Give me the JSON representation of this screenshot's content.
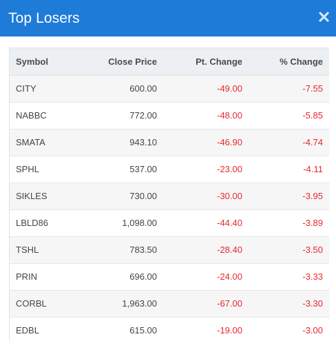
{
  "header": {
    "title": "Top Losers"
  },
  "colors": {
    "header_bg": "#1e7bd8",
    "negative": "#e8262b"
  },
  "icons": {
    "close": "close-icon"
  },
  "table": {
    "columns": [
      "Symbol",
      "Close Price",
      "Pt. Change",
      "% Change"
    ],
    "rows": [
      {
        "symbol": "CITY",
        "close": "600.00",
        "pt": "-49.00",
        "pct": "-7.55"
      },
      {
        "symbol": "NABBC",
        "close": "772.00",
        "pt": "-48.00",
        "pct": "-5.85"
      },
      {
        "symbol": "SMATA",
        "close": "943.10",
        "pt": "-46.90",
        "pct": "-4.74"
      },
      {
        "symbol": "SPHL",
        "close": "537.00",
        "pt": "-23.00",
        "pct": "-4.11"
      },
      {
        "symbol": "SIKLES",
        "close": "730.00",
        "pt": "-30.00",
        "pct": "-3.95"
      },
      {
        "symbol": "LBLD86",
        "close": "1,098.00",
        "pt": "-44.40",
        "pct": "-3.89"
      },
      {
        "symbol": "TSHL",
        "close": "783.50",
        "pt": "-28.40",
        "pct": "-3.50"
      },
      {
        "symbol": "PRIN",
        "close": "696.00",
        "pt": "-24.00",
        "pct": "-3.33"
      },
      {
        "symbol": "CORBL",
        "close": "1,963.00",
        "pt": "-67.00",
        "pct": "-3.30"
      },
      {
        "symbol": "EDBL",
        "close": "615.00",
        "pt": "-19.00",
        "pct": "-3.00"
      }
    ]
  }
}
